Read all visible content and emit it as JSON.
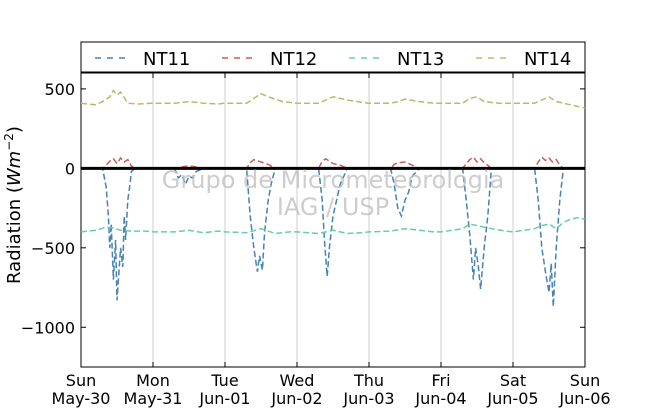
{
  "chart_data": {
    "type": "line",
    "title": "",
    "xlabel": "",
    "ylabel": "Radiation (Wm^-2)",
    "ylabel_main": "Radiation (",
    "ylabel_unit": "Wm",
    "ylabel_exp": "−2",
    "ylabel_close": ")",
    "ylim": [
      -1250,
      600
    ],
    "xlim": [
      0,
      7
    ],
    "grid": "vertical",
    "legend_position": "top",
    "x_ticks": [
      {
        "day": "Sun",
        "date": "May-30"
      },
      {
        "day": "Mon",
        "date": "May-31"
      },
      {
        "day": "Tue",
        "date": "Jun-01"
      },
      {
        "day": "Wed",
        "date": "Jun-02"
      },
      {
        "day": "Thu",
        "date": "Jun-03"
      },
      {
        "day": "Fri",
        "date": "Jun-04"
      },
      {
        "day": "Sat",
        "date": "Jun-05"
      },
      {
        "day": "Sun",
        "date": "Jun-06"
      }
    ],
    "y_ticks": [
      "500",
      "0",
      "−500",
      "−1000"
    ],
    "y_tick_values": [
      500,
      0,
      -500,
      -1000
    ],
    "zero_line": 0,
    "series": [
      {
        "name": "NT11",
        "color": "#4682b4",
        "x": [
          0.0,
          0.3,
          0.35,
          0.38,
          0.4,
          0.42,
          0.45,
          0.48,
          0.5,
          0.55,
          0.58,
          0.6,
          0.62,
          0.65,
          0.68,
          0.7,
          0.75,
          1.0,
          1.3,
          1.35,
          1.4,
          1.45,
          1.5,
          1.55,
          1.6,
          1.7,
          2.0,
          2.3,
          2.35,
          2.4,
          2.45,
          2.48,
          2.52,
          2.55,
          2.6,
          2.65,
          2.7,
          3.0,
          3.3,
          3.35,
          3.38,
          3.42,
          3.45,
          3.5,
          3.6,
          3.7,
          4.0,
          4.3,
          4.35,
          4.4,
          4.45,
          4.5,
          4.55,
          4.6,
          4.7,
          5.0,
          5.3,
          5.35,
          5.4,
          5.45,
          5.48,
          5.52,
          5.55,
          5.6,
          5.65,
          5.7,
          6.0,
          6.3,
          6.35,
          6.4,
          6.45,
          6.5,
          6.53,
          6.56,
          6.6,
          6.65,
          6.7,
          7.0
        ],
        "y": [
          0,
          0,
          -120,
          -300,
          -500,
          -350,
          -700,
          -450,
          -830,
          -500,
          -620,
          -300,
          -450,
          -200,
          -100,
          -20,
          0,
          0,
          0,
          -60,
          -40,
          -100,
          -50,
          -60,
          -20,
          0,
          0,
          0,
          -300,
          -500,
          -650,
          -550,
          -640,
          -400,
          -200,
          -80,
          0,
          0,
          0,
          -200,
          -450,
          -680,
          -500,
          -300,
          -100,
          0,
          0,
          0,
          -100,
          -250,
          -300,
          -200,
          -150,
          -50,
          0,
          0,
          0,
          -200,
          -420,
          -700,
          -500,
          -620,
          -760,
          -500,
          -300,
          0,
          0,
          0,
          -200,
          -500,
          -650,
          -780,
          -600,
          -870,
          -500,
          -200,
          0,
          0
        ]
      },
      {
        "name": "NT12",
        "color": "#cd5c5c",
        "x": [
          0.0,
          0.3,
          0.35,
          0.4,
          0.45,
          0.5,
          0.55,
          0.6,
          0.65,
          0.7,
          0.75,
          1.0,
          1.3,
          1.4,
          1.5,
          1.6,
          1.7,
          2.0,
          2.3,
          2.35,
          2.4,
          2.5,
          2.6,
          2.7,
          3.0,
          3.3,
          3.35,
          3.4,
          3.5,
          3.6,
          3.7,
          4.0,
          4.3,
          4.35,
          4.4,
          4.5,
          4.6,
          4.7,
          5.0,
          5.3,
          5.35,
          5.4,
          5.45,
          5.5,
          5.55,
          5.6,
          5.65,
          5.7,
          6.0,
          6.3,
          6.35,
          6.4,
          6.45,
          6.5,
          6.55,
          6.6,
          6.65,
          6.7,
          7.0
        ],
        "y": [
          0,
          0,
          20,
          45,
          60,
          30,
          65,
          40,
          55,
          15,
          0,
          0,
          0,
          10,
          15,
          10,
          0,
          0,
          0,
          35,
          55,
          40,
          25,
          0,
          0,
          0,
          45,
          60,
          30,
          20,
          0,
          0,
          0,
          25,
          35,
          40,
          20,
          0,
          0,
          0,
          30,
          55,
          70,
          40,
          60,
          35,
          20,
          0,
          0,
          0,
          40,
          70,
          50,
          65,
          40,
          55,
          20,
          0,
          0
        ]
      },
      {
        "name": "NT13",
        "color": "#66cdaa",
        "x": [
          0.0,
          0.2,
          0.35,
          0.45,
          0.55,
          0.7,
          0.9,
          1.0,
          1.3,
          1.5,
          1.7,
          1.9,
          2.0,
          2.3,
          2.5,
          2.7,
          2.9,
          3.0,
          3.3,
          3.5,
          3.7,
          3.9,
          4.0,
          4.3,
          4.5,
          4.7,
          4.9,
          5.0,
          5.3,
          5.4,
          5.5,
          5.7,
          5.9,
          6.0,
          6.3,
          6.4,
          6.5,
          6.6,
          6.7,
          6.8,
          6.9,
          7.0
        ],
        "y": [
          -400,
          -390,
          -370,
          -375,
          -390,
          -395,
          -395,
          -400,
          -400,
          -390,
          -405,
          -395,
          -400,
          -405,
          -380,
          -410,
          -400,
          -400,
          -410,
          -390,
          -410,
          -405,
          -400,
          -395,
          -380,
          -390,
          -400,
          -400,
          -380,
          -350,
          -360,
          -380,
          -395,
          -400,
          -380,
          -360,
          -350,
          -380,
          -340,
          -320,
          -310,
          -320
        ]
      },
      {
        "name": "NT14",
        "color": "#bdb76b",
        "x": [
          0.0,
          0.2,
          0.3,
          0.4,
          0.45,
          0.5,
          0.55,
          0.65,
          0.8,
          1.0,
          1.3,
          1.5,
          1.7,
          1.9,
          2.0,
          2.3,
          2.4,
          2.5,
          2.6,
          2.8,
          3.0,
          3.3,
          3.5,
          3.7,
          3.9,
          4.0,
          4.3,
          4.4,
          4.5,
          4.7,
          4.9,
          5.0,
          5.3,
          5.4,
          5.5,
          5.6,
          5.8,
          6.0,
          6.3,
          6.4,
          6.5,
          6.6,
          6.8,
          7.0
        ],
        "y": [
          410,
          400,
          420,
          450,
          490,
          460,
          480,
          410,
          405,
          410,
          410,
          420,
          410,
          405,
          410,
          410,
          440,
          470,
          450,
          420,
          410,
          410,
          450,
          430,
          415,
          410,
          410,
          420,
          435,
          420,
          410,
          410,
          410,
          440,
          450,
          420,
          410,
          410,
          410,
          430,
          450,
          420,
          400,
          380
        ]
      }
    ],
    "watermark": [
      "Grupo de Micrometeorologia",
      "IAG / USP"
    ]
  }
}
